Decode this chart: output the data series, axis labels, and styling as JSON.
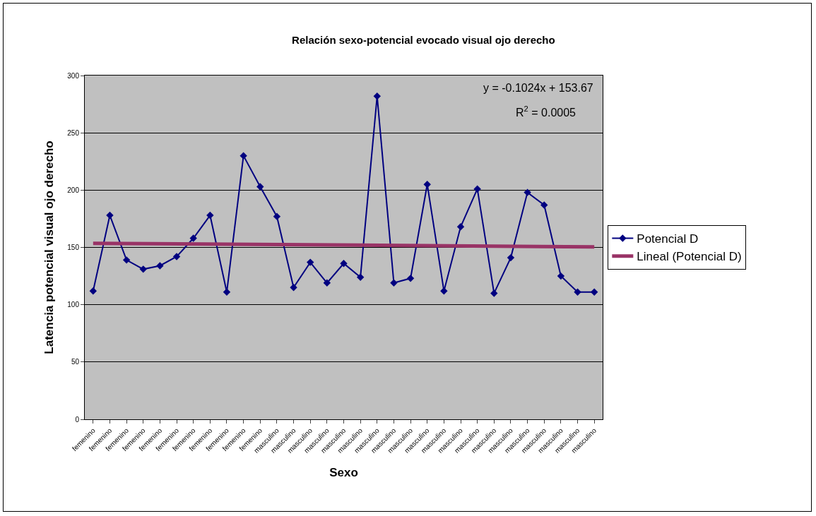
{
  "chart_data": {
    "type": "line",
    "title": "Relación sexo-potencial evocado visual ojo derecho",
    "xlabel": "Sexo",
    "ylabel": "Latencia potencial visual ojo derecho",
    "categories": [
      "femenino",
      "femenino",
      "femenino",
      "femenino",
      "femenino",
      "femenino",
      "femenino",
      "femenino",
      "femenino",
      "femenino",
      "femenino",
      "masculino",
      "masculino",
      "masculino",
      "masculino",
      "masculino",
      "masculino",
      "masculino",
      "masculino",
      "masculino",
      "masculino",
      "masculino",
      "masculino",
      "masculino",
      "masculino",
      "masculino",
      "masculino",
      "masculino",
      "masculino",
      "masculino",
      "masculino"
    ],
    "series": [
      {
        "name": "Potencial D",
        "color": "#000080",
        "marker": "diamond",
        "values": [
          112,
          178,
          139,
          131,
          134,
          142,
          158,
          178,
          111,
          230,
          203,
          177,
          115,
          137,
          119,
          136,
          124,
          282,
          119,
          123,
          205,
          112,
          168,
          201,
          110,
          141,
          198,
          187,
          125,
          111,
          111
        ]
      },
      {
        "name": "Lineal (Potencial D)",
        "color": "#993366",
        "marker": "none",
        "values": [
          153.6,
          null,
          null,
          null,
          null,
          null,
          null,
          null,
          null,
          null,
          null,
          null,
          null,
          null,
          null,
          null,
          null,
          null,
          null,
          null,
          null,
          null,
          null,
          null,
          null,
          null,
          null,
          null,
          null,
          null,
          150.5
        ]
      }
    ],
    "annotations": [
      "y = -0.1024x + 153.67",
      "R$^{2}$ = 0.0005"
    ],
    "ylim": [
      0,
      300
    ],
    "yticks": [
      0,
      50,
      100,
      150,
      200,
      250,
      300
    ],
    "grid": "y",
    "legend": "right"
  }
}
